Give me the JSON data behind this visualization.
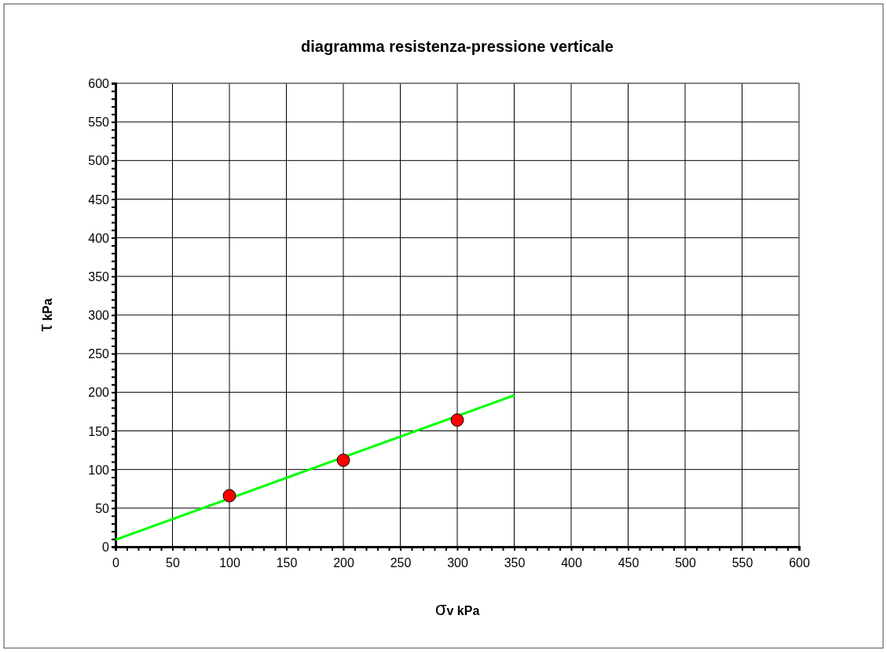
{
  "chart_data": {
    "type": "scatter",
    "title": "diagramma resistenza-pressione verticale",
    "xlabel": "σv  kPa",
    "ylabel": "τ  kPa",
    "series": [
      {
        "type": "line",
        "x": [
          0,
          350
        ],
        "values": [
          9,
          196
        ],
        "color": "#00ff00",
        "marker": "none",
        "line_style": "solid"
      },
      {
        "x": [
          100,
          200,
          300
        ],
        "values": [
          66,
          112,
          164
        ],
        "color": "#ff0000",
        "marker": "circle"
      }
    ],
    "xlim": [
      0,
      600
    ],
    "ylim": [
      0,
      600
    ],
    "xticks": [
      0,
      {
        "value": 10,
        "label": null
      },
      {
        "value": 20,
        "label": null
      },
      {
        "value": 30,
        "label": null
      },
      {
        "value": 40,
        "label": null
      },
      50,
      {
        "value": 60,
        "label": null
      },
      {
        "value": 70,
        "label": null
      },
      {
        "value": 80,
        "label": null
      },
      {
        "value": 90,
        "label": null
      },
      100,
      {
        "value": 110,
        "label": null
      },
      {
        "value": 120,
        "label": null
      },
      {
        "value": 130,
        "label": null
      },
      {
        "value": 140,
        "label": null
      },
      150,
      {
        "value": 160,
        "label": null
      },
      {
        "value": 170,
        "label": null
      },
      {
        "value": 180,
        "label": null
      },
      {
        "value": 190,
        "label": null
      },
      200,
      {
        "value": 210,
        "label": null
      },
      {
        "value": 220,
        "label": null
      },
      {
        "value": 230,
        "label": null
      },
      {
        "value": 240,
        "label": null
      },
      250,
      {
        "value": 260,
        "label": null
      },
      {
        "value": 270,
        "label": null
      },
      {
        "value": 280,
        "label": null
      },
      {
        "value": 290,
        "label": null
      },
      300,
      {
        "value": 310,
        "label": null
      },
      {
        "value": 320,
        "label": null
      },
      {
        "value": 330,
        "label": null
      },
      {
        "value": 340,
        "label": null
      },
      350,
      {
        "value": 360,
        "label": null
      },
      {
        "value": 370,
        "label": null
      },
      {
        "value": 380,
        "label": null
      },
      {
        "value": 390,
        "label": null
      },
      400,
      {
        "value": 410,
        "label": null
      },
      {
        "value": 420,
        "label": null
      },
      {
        "value": 430,
        "label": null
      },
      {
        "value": 440,
        "label": null
      },
      450,
      {
        "value": 460,
        "label": null
      },
      {
        "value": 470,
        "label": null
      },
      {
        "value": 480,
        "label": null
      },
      {
        "value": 490,
        "label": null
      },
      500,
      {
        "value": 510,
        "label": null
      },
      {
        "value": 520,
        "label": null
      },
      {
        "value": 530,
        "label": null
      },
      {
        "value": 540,
        "label": null
      },
      550,
      {
        "value": 560,
        "label": null
      },
      {
        "value": 570,
        "label": null
      },
      {
        "value": 580,
        "label": null
      },
      {
        "value": 590,
        "label": null
      },
      600
    ],
    "yticks": [
      0,
      {
        "value": 10,
        "label": null
      },
      {
        "value": 20,
        "label": null
      },
      {
        "value": 30,
        "label": null
      },
      {
        "value": 40,
        "label": null
      },
      50,
      {
        "value": 60,
        "label": null
      },
      {
        "value": 70,
        "label": null
      },
      {
        "value": 80,
        "label": null
      },
      {
        "value": 90,
        "label": null
      },
      100,
      {
        "value": 110,
        "label": null
      },
      {
        "value": 120,
        "label": null
      },
      {
        "value": 130,
        "label": null
      },
      {
        "value": 140,
        "label": null
      },
      150,
      {
        "value": 160,
        "label": null
      },
      {
        "value": 170,
        "label": null
      },
      {
        "value": 180,
        "label": null
      },
      {
        "value": 190,
        "label": null
      },
      200,
      {
        "value": 210,
        "label": null
      },
      {
        "value": 220,
        "label": null
      },
      {
        "value": 230,
        "label": null
      },
      {
        "value": 240,
        "label": null
      },
      250,
      {
        "value": 260,
        "label": null
      },
      {
        "value": 270,
        "label": null
      },
      {
        "value": 280,
        "label": null
      },
      {
        "value": 290,
        "label": null
      },
      300,
      {
        "value": 310,
        "label": null
      },
      {
        "value": 320,
        "label": null
      },
      {
        "value": 330,
        "label": null
      },
      {
        "value": 340,
        "label": null
      },
      350,
      {
        "value": 360,
        "label": null
      },
      {
        "value": 370,
        "label": null
      },
      {
        "value": 380,
        "label": null
      },
      {
        "value": 390,
        "label": null
      },
      400,
      {
        "value": 410,
        "label": null
      },
      {
        "value": 420,
        "label": null
      },
      {
        "value": 430,
        "label": null
      },
      {
        "value": 440,
        "label": null
      },
      450,
      {
        "value": 460,
        "label": null
      },
      {
        "value": 470,
        "label": null
      },
      {
        "value": 480,
        "label": null
      },
      {
        "value": 490,
        "label": null
      },
      500,
      {
        "value": 510,
        "label": null
      },
      {
        "value": 520,
        "label": null
      },
      {
        "value": 530,
        "label": null
      },
      {
        "value": 540,
        "label": null
      },
      550,
      {
        "value": 560,
        "label": null
      },
      {
        "value": 570,
        "label": null
      },
      {
        "value": 580,
        "label": null
      },
      {
        "value": 590,
        "label": null
      },
      600
    ],
    "grid": true
  }
}
